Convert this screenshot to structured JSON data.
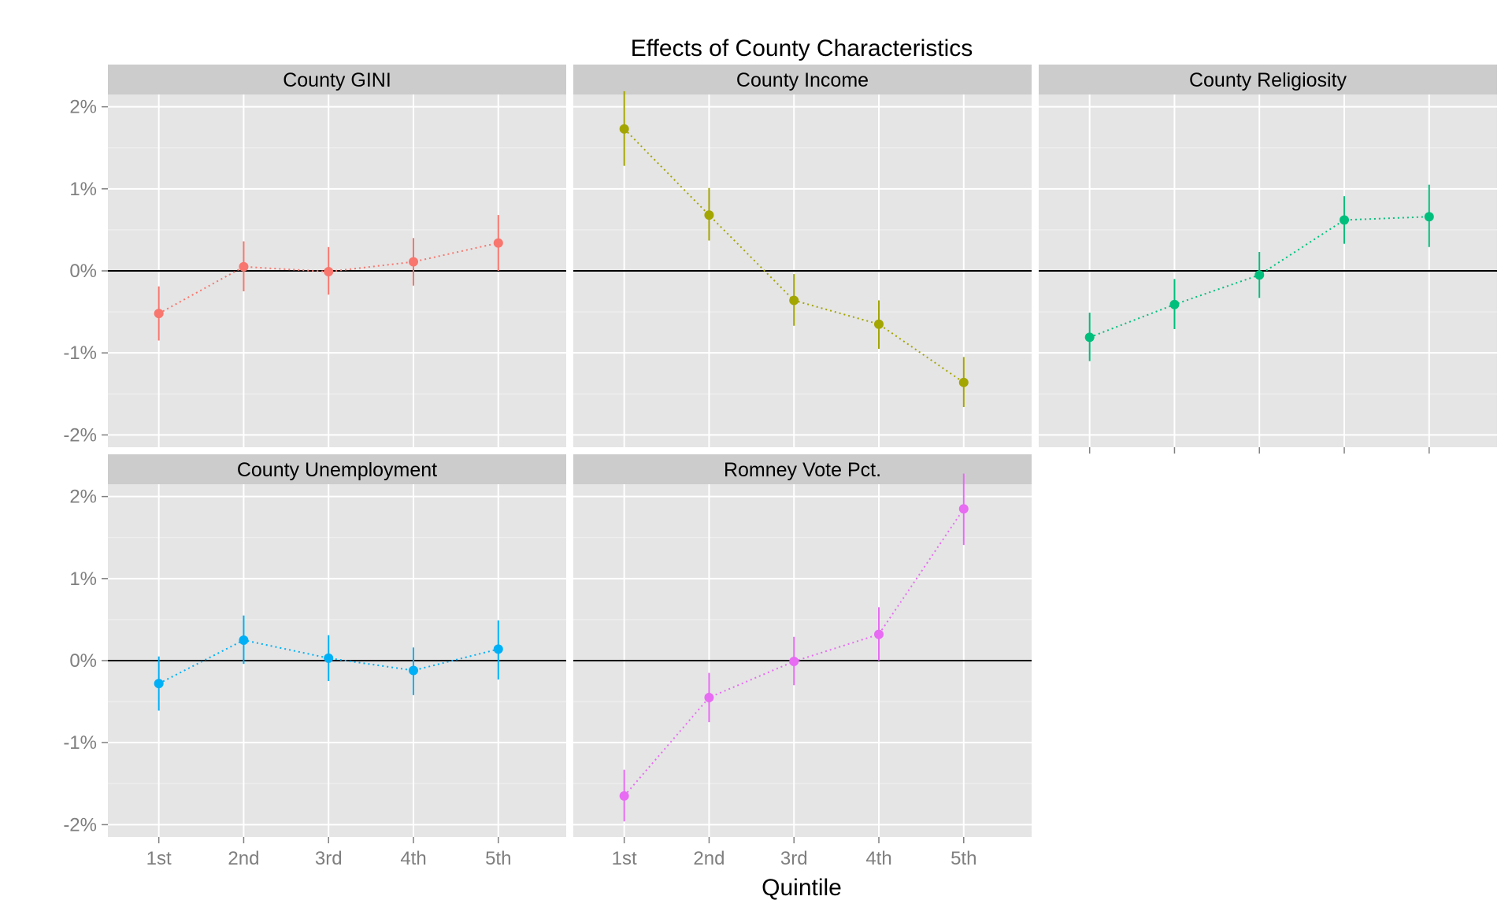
{
  "chart_data": {
    "type": "scatter",
    "title": "Effects of County Characteristics",
    "xlabel": "Quintile",
    "ylabel": "",
    "categories": [
      "1st",
      "2nd",
      "3rd",
      "4th",
      "5th"
    ],
    "yticks": [
      "-2%",
      "-1%",
      "0%",
      "1%",
      "2%"
    ],
    "ylim": [
      -2.15,
      2.15
    ],
    "reference_line": 0,
    "grid": true,
    "legend": "none",
    "facets": [
      {
        "name": "County GINI",
        "color": "#F8766D",
        "values": [
          -0.52,
          0.05,
          -0.01,
          0.11,
          0.34
        ],
        "lower": [
          -0.85,
          -0.25,
          -0.29,
          -0.18,
          0.0
        ],
        "upper": [
          -0.19,
          0.36,
          0.29,
          0.4,
          0.68
        ]
      },
      {
        "name": "County Income",
        "color": "#A3A500",
        "values": [
          1.73,
          0.68,
          -0.36,
          -0.65,
          -1.36
        ],
        "lower": [
          1.28,
          0.37,
          -0.67,
          -0.95,
          -1.66
        ],
        "upper": [
          2.19,
          1.01,
          -0.04,
          -0.36,
          -1.05
        ]
      },
      {
        "name": "County Religiosity",
        "color": "#00BF7D",
        "values": [
          -0.81,
          -0.41,
          -0.05,
          0.62,
          0.66
        ],
        "lower": [
          -1.1,
          -0.71,
          -0.33,
          0.33,
          0.29
        ],
        "upper": [
          -0.51,
          -0.1,
          0.23,
          0.91,
          1.05
        ]
      },
      {
        "name": "County Unemployment",
        "color": "#00B0F6",
        "values": [
          -0.28,
          0.25,
          0.03,
          -0.12,
          0.14
        ],
        "lower": [
          -0.61,
          -0.04,
          -0.25,
          -0.42,
          -0.23
        ],
        "upper": [
          0.05,
          0.55,
          0.31,
          0.16,
          0.49
        ]
      },
      {
        "name": "Romney Vote Pct.",
        "color": "#E76BF3",
        "values": [
          -1.65,
          -0.45,
          -0.01,
          0.32,
          1.85
        ],
        "lower": [
          -1.96,
          -0.75,
          -0.3,
          0.0,
          1.41
        ],
        "upper": [
          -1.33,
          -0.15,
          0.29,
          0.65,
          2.28
        ]
      }
    ]
  }
}
